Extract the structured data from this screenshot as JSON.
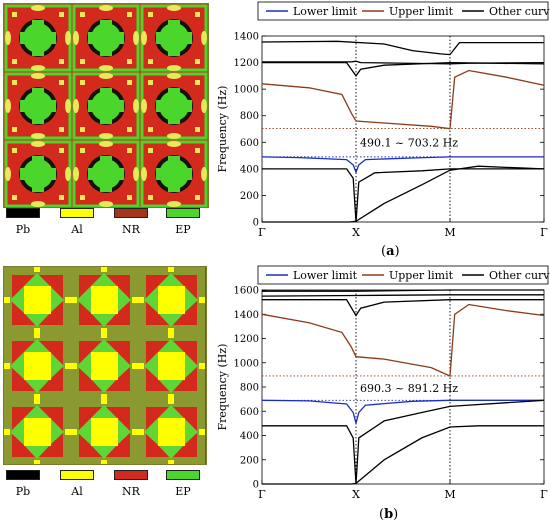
{
  "materials": [
    {
      "name": "Pb",
      "color": "#000000"
    },
    {
      "name": "Al",
      "color": "#ffff00"
    },
    {
      "name": "NR",
      "color": "#d42a1e"
    },
    {
      "name": "EP",
      "color": "#4ad62a"
    }
  ],
  "panel_labels": {
    "a": "a",
    "b": "b"
  },
  "chart_data": [
    {
      "type": "line",
      "ylabel": "Frequency (Hz)",
      "xlabel": "",
      "ylim": [
        0,
        1400
      ],
      "yticks": [
        0,
        200,
        400,
        600,
        800,
        1000,
        1200,
        1400
      ],
      "xticks": [
        "Γ",
        "X",
        "M",
        "Γ"
      ],
      "x": [
        0,
        1,
        2,
        3
      ],
      "legend": [
        "Lower limit",
        "Upper limit",
        "Other curves"
      ],
      "legend_placement": "top",
      "gap_annotation": "490.1 ~ 703.2   Hz",
      "gap_bounds": [
        490.1,
        703.2
      ],
      "series": [
        {
          "name": "Lower limit",
          "color": "#1f2dbb",
          "points": [
            [
              0,
              490
            ],
            [
              0.4,
              485
            ],
            [
              0.9,
              470
            ],
            [
              0.97,
              430
            ],
            [
              1.0,
              375
            ],
            [
              1.03,
              430
            ],
            [
              1.1,
              470
            ],
            [
              1.6,
              482
            ],
            [
              2.0,
              490
            ],
            [
              2.5,
              490
            ],
            [
              3,
              490
            ]
          ]
        },
        {
          "name": "Upper limit",
          "color": "#8b3a1a",
          "points": [
            [
              0,
              1040
            ],
            [
              0.5,
              1010
            ],
            [
              0.85,
              960
            ],
            [
              0.95,
              820
            ],
            [
              1.0,
              760
            ],
            [
              1.3,
              745
            ],
            [
              1.8,
              720
            ],
            [
              2.0,
              703
            ],
            [
              2.05,
              1090
            ],
            [
              2.2,
              1140
            ],
            [
              2.6,
              1090
            ],
            [
              3,
              1030
            ]
          ]
        },
        {
          "name": "Other curves",
          "color": "#000000",
          "points": [
            [
              0,
              0
            ],
            [
              0.93,
              0
            ],
            [
              1.0,
              5
            ],
            [
              1.3,
              140
            ],
            [
              1.7,
              280
            ],
            [
              2.0,
              390
            ],
            [
              2.3,
              420
            ],
            [
              3,
              400
            ]
          ]
        },
        {
          "name": "Other curves",
          "color": "#000000",
          "points": [
            [
              0,
              400
            ],
            [
              0.9,
              400
            ],
            [
              0.97,
              330
            ],
            [
              1.0,
              0
            ],
            [
              1.03,
              300
            ],
            [
              1.2,
              370
            ],
            [
              1.7,
              385
            ],
            [
              2.0,
              400
            ],
            [
              3,
              400
            ]
          ]
        },
        {
          "name": "Other curves",
          "color": "#000000",
          "points": [
            [
              0,
              1200
            ],
            [
              0.9,
              1200
            ],
            [
              1.0,
              1100
            ],
            [
              1.05,
              1150
            ],
            [
              1.3,
              1180
            ],
            [
              2.0,
              1200
            ],
            [
              3,
              1190
            ]
          ]
        },
        {
          "name": "Other curves",
          "color": "#000000",
          "points": [
            [
              0,
              1205
            ],
            [
              0.95,
              1205
            ],
            [
              1.0,
              1210
            ],
            [
              1.05,
              1200
            ],
            [
              2.0,
              1190
            ],
            [
              2.2,
              1195
            ],
            [
              3,
              1200
            ]
          ]
        },
        {
          "name": "Other curves",
          "color": "#000000",
          "points": [
            [
              0,
              1355
            ],
            [
              0.8,
              1360
            ],
            [
              1.3,
              1340
            ],
            [
              1.6,
              1290
            ],
            [
              1.9,
              1265
            ],
            [
              2.0,
              1260
            ],
            [
              2.1,
              1350
            ],
            [
              3,
              1350
            ]
          ]
        }
      ]
    },
    {
      "type": "line",
      "ylabel": "Frequency (Hz)",
      "xlabel": "",
      "ylim": [
        0,
        1600
      ],
      "yticks": [
        0,
        200,
        400,
        600,
        800,
        1000,
        1200,
        1400,
        1600
      ],
      "xticks": [
        "Γ",
        "X",
        "M",
        "Γ"
      ],
      "x": [
        0,
        1,
        2,
        3
      ],
      "legend": [
        "Lower limit",
        "Upper limit",
        "Other curves"
      ],
      "legend_placement": "top",
      "gap_annotation": "690.3 ~ 891.2   Hz",
      "gap_bounds": [
        690.3,
        891.2
      ],
      "series": [
        {
          "name": "Lower limit",
          "color": "#1f2dbb",
          "points": [
            [
              0,
              690
            ],
            [
              0.5,
              685
            ],
            [
              0.9,
              660
            ],
            [
              0.97,
              590
            ],
            [
              1.0,
              500
            ],
            [
              1.03,
              590
            ],
            [
              1.1,
              650
            ],
            [
              1.6,
              682
            ],
            [
              2.0,
              690
            ],
            [
              3,
              690
            ]
          ]
        },
        {
          "name": "Upper limit",
          "color": "#8b3a1a",
          "points": [
            [
              0,
              1400
            ],
            [
              0.5,
              1330
            ],
            [
              0.85,
              1250
            ],
            [
              0.95,
              1130
            ],
            [
              1.0,
              1050
            ],
            [
              1.3,
              1030
            ],
            [
              1.8,
              960
            ],
            [
              2.0,
              891
            ],
            [
              2.05,
              1400
            ],
            [
              2.2,
              1480
            ],
            [
              2.6,
              1430
            ],
            [
              3,
              1390
            ]
          ]
        },
        {
          "name": "Other curves",
          "color": "#000000",
          "points": [
            [
              0,
              0
            ],
            [
              0.95,
              0
            ],
            [
              1.0,
              5
            ],
            [
              1.3,
              200
            ],
            [
              1.7,
              380
            ],
            [
              2.0,
              470
            ],
            [
              2.3,
              480
            ],
            [
              3,
              480
            ]
          ]
        },
        {
          "name": "Other curves",
          "color": "#000000",
          "points": [
            [
              0,
              480
            ],
            [
              0.9,
              480
            ],
            [
              0.97,
              380
            ],
            [
              1.0,
              0
            ],
            [
              1.03,
              380
            ],
            [
              1.3,
              520
            ],
            [
              1.7,
              590
            ],
            [
              2.0,
              640
            ],
            [
              3,
              690
            ]
          ]
        },
        {
          "name": "Other curves",
          "color": "#000000",
          "points": [
            [
              0,
              1520
            ],
            [
              0.9,
              1520
            ],
            [
              1.0,
              1390
            ],
            [
              1.05,
              1450
            ],
            [
              1.3,
              1500
            ],
            [
              2.0,
              1520
            ],
            [
              3,
              1520
            ]
          ]
        },
        {
          "name": "Other curves",
          "color": "#000000",
          "points": [
            [
              0,
              1550
            ],
            [
              1.0,
              1555
            ],
            [
              2.0,
              1560
            ],
            [
              3,
              1560
            ]
          ]
        },
        {
          "name": "Other curves",
          "color": "#000000",
          "points": [
            [
              0,
              1590
            ],
            [
              1.0,
              1590
            ],
            [
              2.0,
              1600
            ],
            [
              3,
              1600
            ]
          ]
        }
      ]
    }
  ]
}
